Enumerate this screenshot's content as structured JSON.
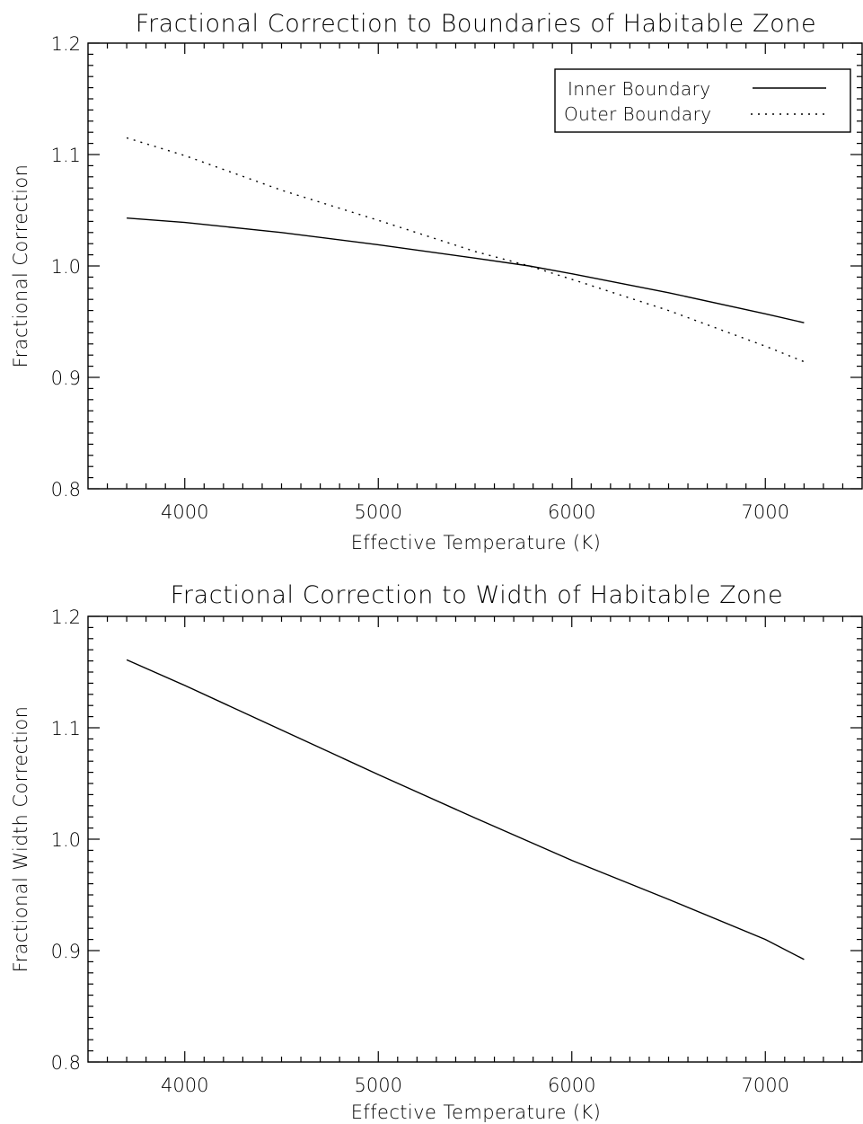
{
  "chart_data": [
    {
      "type": "line",
      "title": "Fractional Correction to Boundaries of Habitable Zone",
      "xlabel": "Effective Temperature (K)",
      "ylabel": "Fractional Correction",
      "xlim": [
        3500,
        7500
      ],
      "ylim": [
        0.8,
        1.2
      ],
      "x_ticks": [
        4000,
        5000,
        6000,
        7000
      ],
      "x_tick_labels": [
        "4000",
        "5000",
        "6000",
        "7000"
      ],
      "y_ticks": [
        0.8,
        0.9,
        1.0,
        1.1,
        1.2
      ],
      "y_tick_labels": [
        "0.8",
        "0.9",
        "1.0",
        "1.1",
        "1.2"
      ],
      "legend_position": "top-right",
      "grid": false,
      "series": [
        {
          "name": "Inner Boundary",
          "style": "solid",
          "x": [
            3700,
            4000,
            4500,
            5000,
            5500,
            5780,
            6000,
            6500,
            7000,
            7200
          ],
          "y": [
            1.043,
            1.039,
            1.03,
            1.019,
            1.007,
            1.0,
            0.993,
            0.976,
            0.957,
            0.949
          ]
        },
        {
          "name": "Outer Boundary",
          "style": "dotted",
          "x": [
            3700,
            4000,
            4500,
            5000,
            5500,
            5780,
            6000,
            6500,
            7000,
            7200
          ],
          "y": [
            1.115,
            1.099,
            1.068,
            1.041,
            1.013,
            1.0,
            0.988,
            0.96,
            0.928,
            0.914
          ]
        }
      ]
    },
    {
      "type": "line",
      "title": "Fractional Correction to Width of Habitable Zone",
      "xlabel": "Effective Temperature (K)",
      "ylabel": "Fractional Width Correction",
      "xlim": [
        3500,
        7500
      ],
      "ylim": [
        0.8,
        1.2
      ],
      "x_ticks": [
        4000,
        5000,
        6000,
        7000
      ],
      "x_tick_labels": [
        "4000",
        "5000",
        "6000",
        "7000"
      ],
      "y_ticks": [
        0.8,
        0.9,
        1.0,
        1.1,
        1.2
      ],
      "y_tick_labels": [
        "0.8",
        "0.9",
        "1.0",
        "1.1",
        "1.2"
      ],
      "grid": false,
      "series": [
        {
          "style": "solid",
          "x": [
            3700,
            4000,
            4500,
            5000,
            5500,
            6000,
            6500,
            7000,
            7200
          ],
          "y": [
            1.161,
            1.138,
            1.098,
            1.058,
            1.019,
            0.981,
            0.946,
            0.91,
            0.892
          ]
        }
      ]
    }
  ]
}
